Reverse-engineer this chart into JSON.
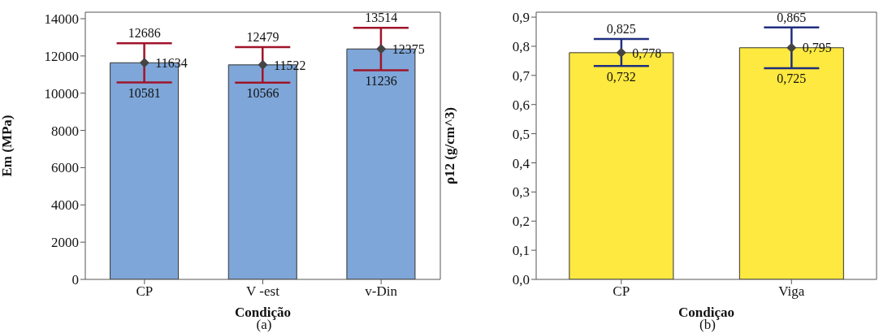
{
  "chart_data": [
    {
      "type": "bar",
      "categories": [
        "CP",
        "V -est",
        "v-Din"
      ],
      "xlabel": "Condição",
      "ylabel": "Em (MPa)",
      "ylim": [
        0,
        14350
      ],
      "yticks": [
        0,
        2000,
        4000,
        6000,
        8000,
        10000,
        12000,
        14000
      ],
      "legend": false,
      "series": [
        {
          "color": "#7ea6d8",
          "values": [
            11634,
            11522,
            12375
          ],
          "errors": [
            [
              10581,
              12686
            ],
            [
              10566,
              12479
            ],
            [
              11236,
              13514
            ]
          ]
        },
        {
          "type": "scatter",
          "color": "#444444",
          "marker": "diamond",
          "x": [
            "CP",
            "V -est",
            "v-Din"
          ],
          "values": [
            11634,
            11522,
            12375
          ],
          "value_labels": [
            "11634",
            "11522",
            "12375"
          ]
        }
      ],
      "annotations": [
        {
          "text": "12686",
          "x": "CP",
          "y": 12686
        },
        {
          "text": "10581",
          "x": "CP",
          "y": 10581
        },
        {
          "text": "12479",
          "x": "V -est",
          "y": 12479
        },
        {
          "text": "10566",
          "x": "V -est",
          "y": 10566
        },
        {
          "text": "13514",
          "x": "v-Din",
          "y": 13514
        },
        {
          "text": "11236",
          "x": "v-Din",
          "y": 11236
        },
        "(a)"
      ]
    },
    {
      "type": "bar",
      "categories": [
        "CP",
        "Viga"
      ],
      "xlabel": "Condiçao",
      "ylabel": "ρ12 (g/cm^3)",
      "ylim": [
        0,
        0.917
      ],
      "yticks": [
        {
          "value": 0,
          "label": "0,0"
        },
        {
          "value": 0.1,
          "label": "0,1"
        },
        {
          "value": 0.2,
          "label": "0,2"
        },
        {
          "value": 0.3,
          "label": "0,3"
        },
        {
          "value": 0.4,
          "label": "0,4"
        },
        {
          "value": 0.5,
          "label": "0,5"
        },
        {
          "value": 0.6,
          "label": "0,6"
        },
        {
          "value": 0.7,
          "label": "0,7"
        },
        {
          "value": 0.8,
          "label": "0,8"
        },
        {
          "value": 0.9,
          "label": "0,9"
        }
      ],
      "legend": false,
      "series": [
        {
          "color": "#fde93f",
          "values": [
            0.778,
            0.795
          ],
          "errors": [
            [
              0.732,
              0.825
            ],
            [
              0.725,
              0.865
            ]
          ]
        },
        {
          "type": "scatter",
          "color": "#444444",
          "marker": "diamond",
          "x": [
            "CP",
            "Viga"
          ],
          "values": [
            0.778,
            0.795
          ],
          "value_labels": [
            "0,778",
            "0,795"
          ]
        }
      ],
      "annotations": [
        {
          "text": "0,825",
          "x": "CP",
          "y": 0.825
        },
        {
          "text": "0,732",
          "x": "CP",
          "y": 0.732
        },
        {
          "text": "0,865",
          "x": "Viga",
          "y": 0.865
        },
        {
          "text": "0,725",
          "x": "Viga",
          "y": 0.725
        },
        "(b)"
      ]
    }
  ]
}
